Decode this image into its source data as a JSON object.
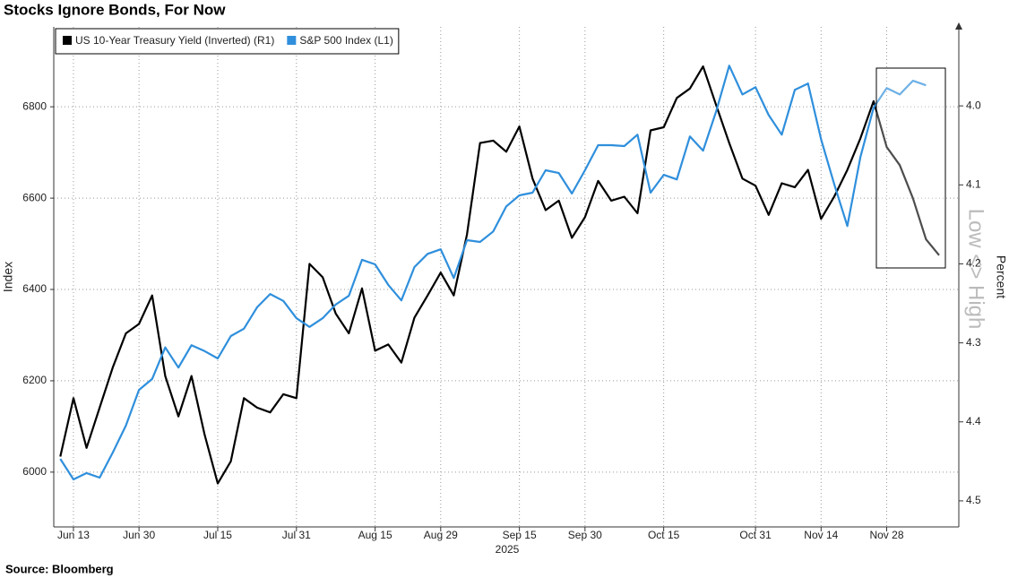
{
  "chart_data": {
    "type": "line",
    "title": "Stocks Ignore Bonds, For Now",
    "source": "Source: Bloomberg",
    "ylabel": "Index",
    "y2label": "Percent",
    "annotation": "Low <> High",
    "x_year_label": "2025",
    "categories": [
      null,
      "Jun 13",
      null,
      null,
      null,
      null,
      "Jun 30",
      null,
      null,
      null,
      null,
      null,
      "Jul 15",
      null,
      null,
      null,
      null,
      null,
      "Jul 31",
      null,
      null,
      null,
      null,
      null,
      "Aug 15",
      null,
      null,
      null,
      null,
      "Aug 29",
      null,
      null,
      null,
      null,
      null,
      "Sep 15",
      null,
      null,
      null,
      null,
      "Sep 30",
      null,
      null,
      null,
      null,
      null,
      "Oct 15",
      null,
      null,
      null,
      null,
      null,
      null,
      "Oct 31",
      null,
      null,
      null,
      null,
      "Nov 14",
      null,
      null,
      null,
      null,
      "Nov 28",
      null,
      null,
      null,
      null,
      null
    ],
    "series": [
      {
        "name": "US 10-Year Treasury Yield (Inverted) (R1)",
        "color": "#000000",
        "axis": "y2",
        "values": [
          4.444,
          4.37,
          4.433,
          4.382,
          4.331,
          4.288,
          4.276,
          4.24,
          4.342,
          4.393,
          4.342,
          4.416,
          4.478,
          4.45,
          4.37,
          4.382,
          4.388,
          4.365,
          4.37,
          4.2,
          4.217,
          4.263,
          4.288,
          4.231,
          4.31,
          4.302,
          4.325,
          4.268,
          4.24,
          4.211,
          4.24,
          4.163,
          4.047,
          4.044,
          4.058,
          4.026,
          4.092,
          4.132,
          4.12,
          4.167,
          4.141,
          4.095,
          4.12,
          4.115,
          4.136,
          4.031,
          4.027,
          3.99,
          3.978,
          3.95,
          3.999,
          4.047,
          4.092,
          4.101,
          4.138,
          4.098,
          4.103,
          4.081,
          4.143,
          4.115,
          4.081,
          4.041,
          3.994,
          4.052,
          4.075,
          4.117,
          4.169,
          4.189,
          null
        ]
      },
      {
        "name": "S&P 500 Index (L1)",
        "color": "#2f8fdc",
        "values": [
          6029,
          5984,
          5998,
          5988,
          6043,
          6102,
          6180,
          6204,
          6273,
          6229,
          6278,
          6265,
          6249,
          6298,
          6314,
          6361,
          6390,
          6375,
          6337,
          6318,
          6337,
          6367,
          6386,
          6465,
          6455,
          6410,
          6376,
          6449,
          6478,
          6488,
          6425,
          6508,
          6504,
          6527,
          6582,
          6606,
          6612,
          6661,
          6655,
          6610,
          6661,
          6716,
          6716,
          6714,
          6739,
          6612,
          6651,
          6641,
          6735,
          6704,
          6790,
          6890,
          6827,
          6843,
          6782,
          6739,
          6837,
          6851,
          6729,
          6631,
          6539,
          6690,
          6798,
          6841,
          6827,
          6857,
          6847,
          null,
          null
        ]
      }
    ],
    "ylim": [
      5880,
      6975
    ],
    "yticks": [
      6000,
      6200,
      6400,
      6600,
      6800
    ],
    "y2lim": [
      4.533,
      3.9
    ],
    "y2ticks": [
      {
        "value": 4,
        "label": "4.0"
      },
      4.1,
      4.2,
      4.3,
      4.4,
      4.5
    ],
    "grid": true,
    "legend": "upper left"
  }
}
